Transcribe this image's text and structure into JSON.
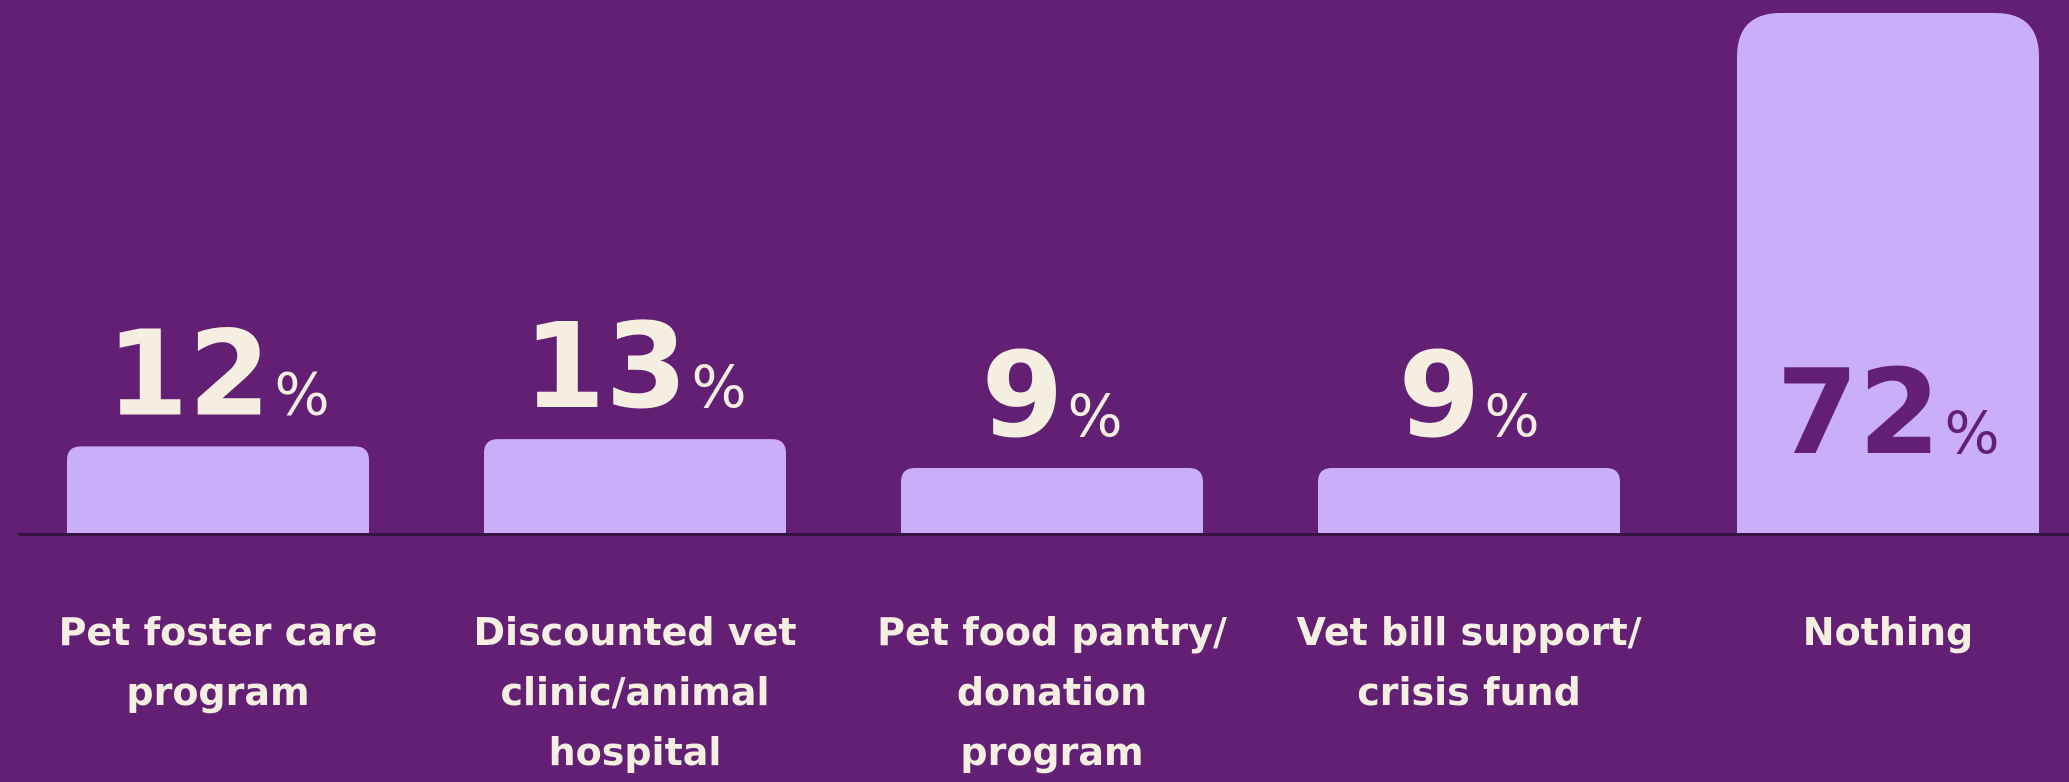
{
  "colors": {
    "background": "#631f73",
    "bar": "#cbaefa",
    "axis": "#36143f",
    "label_text": "#f4efe0",
    "inside_value_text": "#631f73"
  },
  "chart_data": {
    "type": "bar",
    "title": "",
    "xlabel": "",
    "ylabel": "",
    "ylim": [
      0,
      72
    ],
    "value_suffix": "%",
    "categories": [
      "Pet foster care\nprogram",
      "Discounted vet\nclinic/animal\nhospital",
      "Pet food pantry/\ndonation program",
      "Vet bill support/\ncrisis fund",
      "Nothing"
    ],
    "values": [
      12,
      13,
      9,
      9,
      72
    ],
    "value_labels": [
      "12",
      "13",
      "9",
      "9",
      "72"
    ],
    "grid": false,
    "legend": "none"
  }
}
